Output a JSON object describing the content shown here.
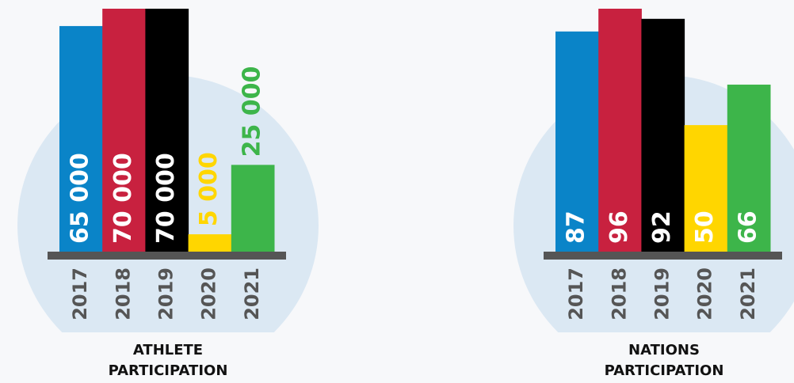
{
  "chart_data": [
    {
      "type": "bar",
      "title": "ATHLETE PARTICIPATION",
      "categories": [
        "2017",
        "2018",
        "2019",
        "2020",
        "2021"
      ],
      "values": [
        65000,
        70000,
        70000,
        5000,
        25000
      ],
      "value_labels": [
        "65 000",
        "70 000",
        "70 000",
        "5 000",
        "25 000"
      ],
      "colors": [
        "#0a84c8",
        "#c8213f",
        "#000000",
        "#ffd600",
        "#3db54a"
      ]
    },
    {
      "type": "bar",
      "title": "NATIONS PARTICIPATION",
      "categories": [
        "2017",
        "2018",
        "2019",
        "2020",
        "2021"
      ],
      "values": [
        87,
        96,
        92,
        50,
        66
      ],
      "colors": [
        "#0a84c8",
        "#c8213f",
        "#000000",
        "#ffd600",
        "#3db54a"
      ]
    }
  ]
}
